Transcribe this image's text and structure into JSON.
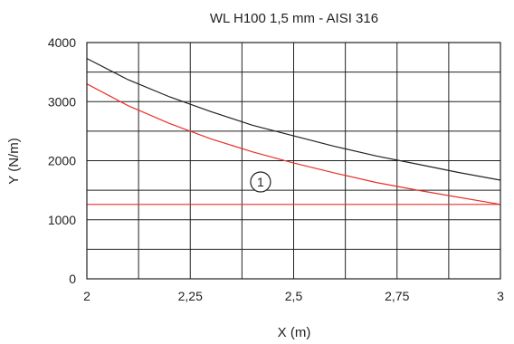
{
  "chart_data": {
    "type": "line",
    "title": "WL H100 1,5 mm - AISI 316",
    "xlabel": "X (m)",
    "ylabel": "Y (N/m)",
    "xlim": [
      2,
      3
    ],
    "ylim": [
      0,
      4000
    ],
    "x_ticks": [
      2,
      2.25,
      2.5,
      2.75,
      3
    ],
    "x_tick_labels": [
      "2",
      "2,25",
      "2,5",
      "2,75",
      "3"
    ],
    "y_ticks": [
      0,
      1000,
      2000,
      3000,
      4000
    ],
    "y_tick_labels": [
      "0",
      "1000",
      "2000",
      "3000",
      "4000"
    ],
    "grid": true,
    "series": [
      {
        "color": "#222222",
        "x": [
          2,
          2.1,
          2.2,
          2.3,
          2.4,
          2.5,
          2.6,
          2.7,
          2.8,
          2.9,
          3
        ],
        "values": [
          3730,
          3370,
          3080,
          2830,
          2600,
          2420,
          2240,
          2080,
          1940,
          1800,
          1670
        ]
      },
      {
        "color": "#e8302a",
        "x": [
          2,
          2.1,
          2.2,
          2.3,
          2.4,
          2.5,
          2.6,
          2.7,
          2.8,
          2.9,
          3
        ],
        "values": [
          3300,
          2930,
          2630,
          2370,
          2150,
          1960,
          1790,
          1630,
          1500,
          1380,
          1260
        ]
      },
      {
        "color": "#e8302a",
        "x": [
          2,
          3
        ],
        "values": [
          1260,
          1260
        ]
      }
    ],
    "annotations": [
      {
        "text": "1",
        "x": 2.42,
        "y": 1640,
        "shape": "circle"
      }
    ]
  }
}
